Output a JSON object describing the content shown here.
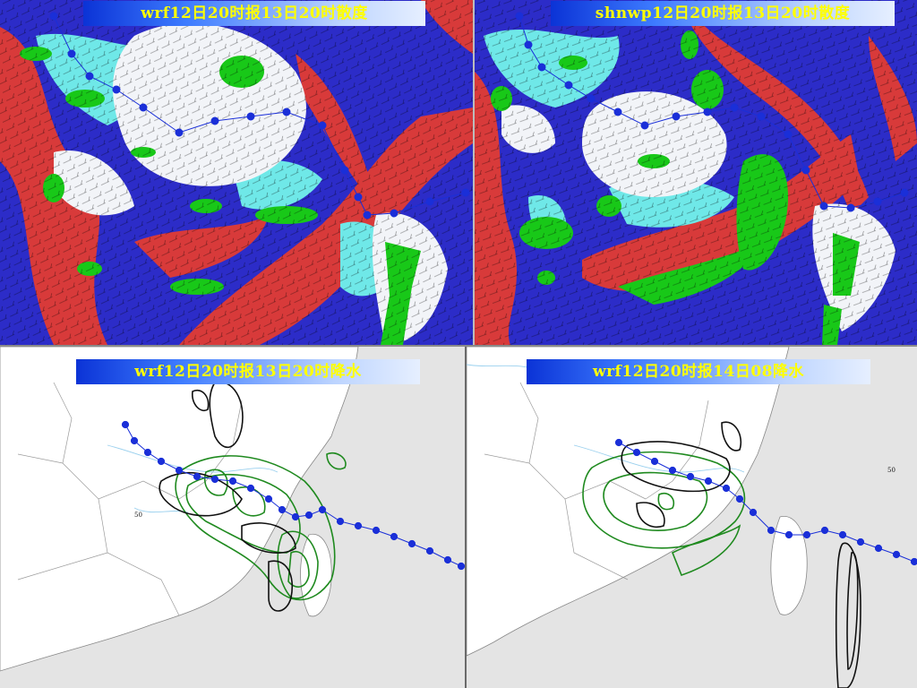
{
  "panels": [
    {
      "id": "top-left",
      "title": "wrf12日20时报13日20时散度",
      "type": "divergence"
    },
    {
      "id": "top-right",
      "title": "shnwp12日20时报13日20时散度",
      "type": "divergence"
    },
    {
      "id": "bottom-left",
      "title": "wrf12日20时报13日20时降水",
      "type": "precipitation",
      "contour_label": "50"
    },
    {
      "id": "bottom-right",
      "title": "wrf12日20时报14日08降水",
      "type": "precipitation",
      "contour_label": "50"
    }
  ],
  "colors": {
    "divergence_base": "#2c2cc8",
    "divergence_red": "#d83a3a",
    "divergence_cyan": "#6fe8e8",
    "divergence_green": "#18c818",
    "typhoon_track": "#1a2fd8",
    "precip_black": "#111111",
    "precip_green": "#1f8a1f",
    "land": "#ffffff",
    "sea": "#e4e4e4"
  }
}
